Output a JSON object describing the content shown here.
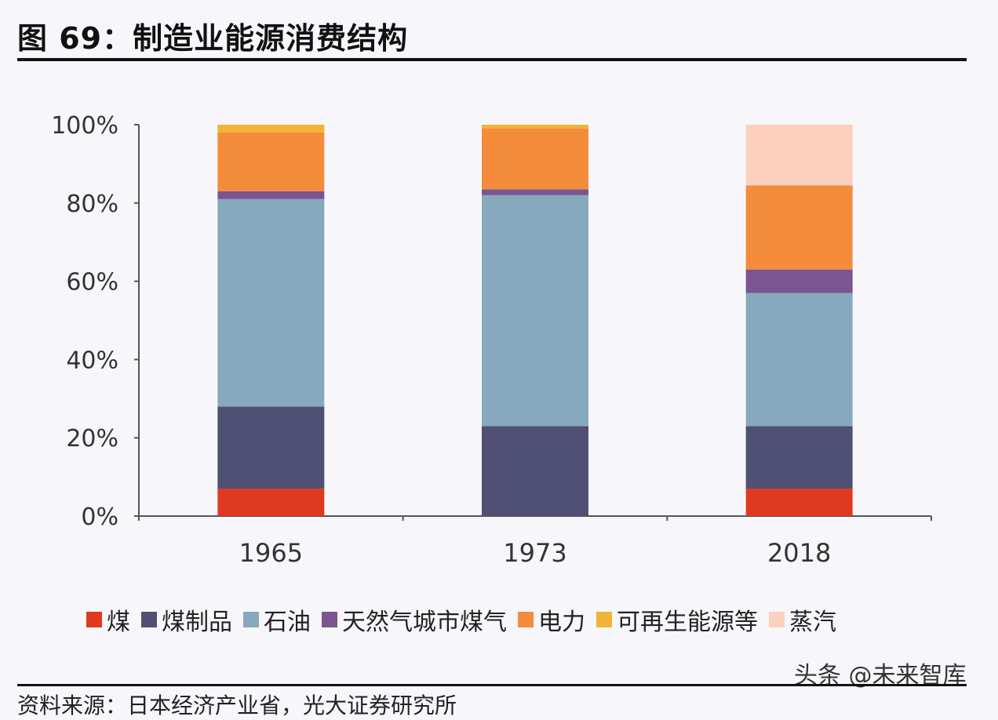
{
  "title": "图 69：制造业能源消费结构",
  "watermark": "头条 @未来智库",
  "source": "资料来源：日本经济产业省，光大证券研究所",
  "chart_data": {
    "type": "bar",
    "stacked": true,
    "categories": [
      "1965",
      "1973",
      "2018"
    ],
    "ylim": [
      0,
      100
    ],
    "yticks": [
      "0%",
      "20%",
      "40%",
      "60%",
      "80%",
      "100%"
    ],
    "ytick_values": [
      0,
      20,
      40,
      60,
      80,
      100
    ],
    "legend_position": "bottom",
    "grid": false,
    "series": [
      {
        "name": "煤",
        "color": "#e03a1e",
        "values": [
          7,
          0,
          7
        ]
      },
      {
        "name": "煤制品",
        "color": "#4f5073",
        "values": [
          21,
          23,
          16
        ]
      },
      {
        "name": "石油",
        "color": "#86a9bd",
        "values": [
          53,
          59,
          34
        ]
      },
      {
        "name": "天然气城市煤气",
        "color": "#7b5591",
        "values": [
          2,
          1.5,
          6
        ]
      },
      {
        "name": "电力",
        "color": "#f48c3c",
        "values": [
          15,
          15.5,
          21.5
        ]
      },
      {
        "name": "可再生能源等",
        "color": "#f2b33a",
        "values": [
          2,
          1,
          0
        ]
      },
      {
        "name": "蒸汽",
        "color": "#fcd0bd",
        "values": [
          0,
          0,
          15.5
        ]
      }
    ]
  }
}
